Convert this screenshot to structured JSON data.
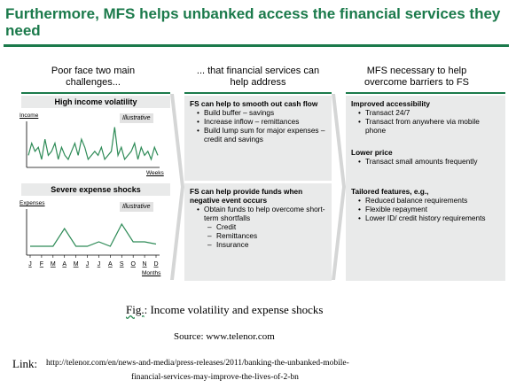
{
  "slide": {
    "title": "Furthermore, MFS helps unbanked access the financial services they need",
    "columns": [
      {
        "header": "Poor face two main challenges..."
      },
      {
        "header": "... that financial services can help address"
      },
      {
        "header": "MFS necessary to help overcome barriers to FS"
      }
    ],
    "left": {
      "top_band": "High income volatility",
      "bottom_band": "Severe expense shocks",
      "income_chart": {
        "ylabel": "Income",
        "xlabel": "Weeks",
        "note": "Illustrative"
      },
      "expense_chart": {
        "ylabel": "Expenses",
        "xlabel": "Months",
        "note": "Illustrative",
        "months": [
          "J",
          "F",
          "M",
          "A",
          "M",
          "J",
          "J",
          "A",
          "S",
          "O",
          "N",
          "D"
        ]
      }
    },
    "middle": {
      "top_heading": "FS can help to smooth out cash flow",
      "top_bullets": [
        "Build buffer – savings",
        "Increase inflow – remittances",
        "Build lump sum for major expenses – credit and savings"
      ],
      "bottom_heading": "FS can help provide funds when negative event occurs",
      "bottom_bullet": "Obtain funds to help overcome short-term shortfalls",
      "bottom_subitems": [
        "Credit",
        "Remittances",
        "Insurance"
      ]
    },
    "right": {
      "sections": [
        {
          "heading": "Improved accessibility",
          "bullets": [
            "Transact 24/7",
            "Transact from anywhere via mobile phone"
          ]
        },
        {
          "heading": "Lower price",
          "bullets": [
            "Transact small amounts frequently"
          ]
        },
        {
          "heading": "Tailored features, e.g.,",
          "bullets": [
            "Reduced balance requirements",
            "Flexible repayment",
            "Lower ID/ credit history requirements"
          ]
        }
      ]
    }
  },
  "chart_data": [
    {
      "type": "line",
      "title": "High income volatility",
      "xlabel": "Weeks",
      "ylabel": "Income",
      "x": [
        1,
        2,
        3,
        4,
        5,
        6,
        7,
        8,
        9,
        10,
        11,
        12,
        13,
        14,
        15,
        16,
        17,
        18,
        19,
        20,
        21,
        22,
        23,
        24,
        25,
        26,
        27,
        28,
        29,
        30,
        31,
        32,
        33,
        34,
        35,
        36,
        37,
        38,
        39,
        40
      ],
      "series": [
        {
          "values": [
            3,
            6,
            4,
            5,
            2,
            7,
            3,
            4,
            6,
            2,
            5,
            3,
            2,
            4,
            6,
            3,
            7,
            5,
            2,
            3,
            4,
            3,
            5,
            2,
            3,
            4,
            10,
            3,
            5,
            2,
            3,
            4,
            6,
            2,
            5,
            3,
            4,
            2,
            5,
            3
          ]
        }
      ],
      "ylim": [
        0,
        11
      ]
    },
    {
      "type": "line",
      "title": "Severe expense shocks",
      "xlabel": "Months",
      "ylabel": "Expenses",
      "categories": [
        "J",
        "F",
        "M",
        "A",
        "M",
        "J",
        "J",
        "A",
        "S",
        "O",
        "N",
        "D"
      ],
      "series": [
        {
          "values": [
            2,
            2,
            2,
            6,
            2,
            2,
            3,
            2,
            7,
            3,
            3,
            2.5
          ]
        }
      ],
      "ylim": [
        0,
        10
      ]
    }
  ],
  "caption": {
    "fig_label": "Fig.",
    "fig_text": ": Income volatility and expense shocks",
    "source": "Source: www.telenor.com",
    "link_label": "Link:",
    "link_line1": "http://telenor.com/en/news-and-media/press-releases/2011/banking-the-unbanked-mobile-",
    "link_line2": "financial-services-may-improve-the-lives-of-2-bn"
  },
  "colors": {
    "accent": "#1b7a4b",
    "band": "#e9eaea",
    "line": "#2e8b57"
  }
}
